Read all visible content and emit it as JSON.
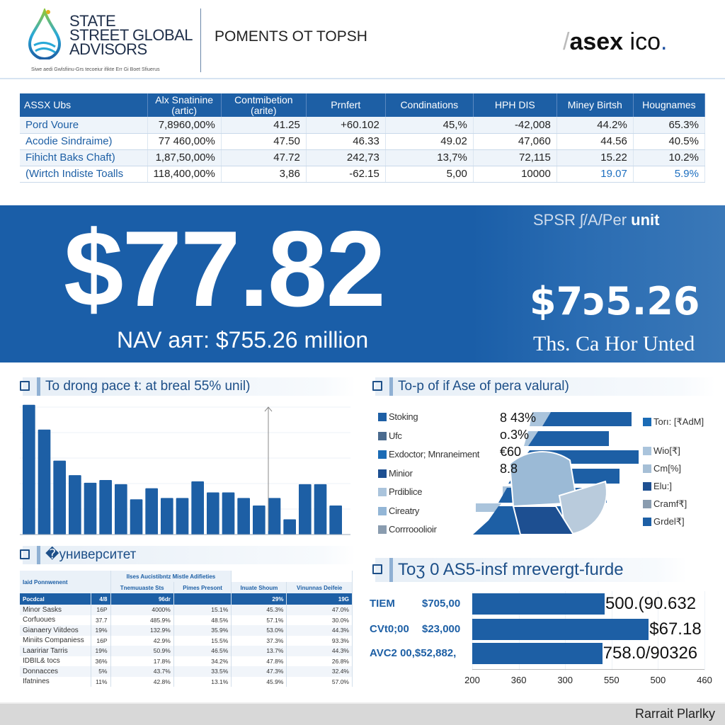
{
  "header": {
    "logo_lines": [
      "STATE",
      "STREET GLOBAL",
      "ADVISORS"
    ],
    "tagline": "Siwe aedi Gwlsfiinu-Grs tecoeiur ifikte Err Gi Boet Sfiuerus",
    "doc_title": "POMENTS OT TOPSH",
    "brand_bold": "asex",
    "brand_light": "ico",
    "brand_dot": "."
  },
  "top_table": {
    "columns": [
      "ASSX Ubs",
      "Alx Snatinine (artic)",
      "Contmibetion (arite)",
      "Prnfert",
      "Condinations",
      "HPH DIS",
      "Miney Birtsh",
      "Hougnames"
    ],
    "rows": [
      [
        "Pord Voure",
        "7,8960,00%",
        "41.25",
        "+60.102",
        "45,%",
        "-42,008",
        "44.2%",
        "65.3%"
      ],
      [
        "Acodie Sindraime)",
        "77 460,00%",
        "47.50",
        "46.33",
        "49.02",
        "47,060",
        "44.56",
        "40.5%"
      ],
      [
        "Fihicht Baks Chaft)",
        "1,87,50,00%",
        "47.72",
        "242,73",
        "13,7%",
        "72,115",
        "15.22",
        "10.2%"
      ],
      [
        "(Wirtch Indiste Toalls",
        "118,400,00%",
        "3,86",
        "-62.15",
        "5,00",
        "10000",
        "19.07",
        "5.9%"
      ]
    ]
  },
  "banner": {
    "price": "$77.82",
    "nav_text": "NAV aят: $755.26 million",
    "unit_label_light": "SPSR ʃ/A/Per ",
    "unit_label_bold": "unit",
    "unit_price": "$7ↄ5.26",
    "unit_sub": "Ths. Ca Hor Unted"
  },
  "section_left_top": {
    "title": "To drong pace ŧ: at breal 55% unil)"
  },
  "section_left_bottom": {
    "title": "�университет"
  },
  "section_right_top": {
    "title": "To-p of if Ase of pera valural)"
  },
  "section_right_bottom": {
    "title": "Toʒ 0 AS5-insf mrevergt-furde"
  },
  "small_table": {
    "corner": "Iaid Ponnwenent",
    "group_header": "Ilses Aucistibntz Mistle Adifieties",
    "sub_headers": [
      "Tnemuuaste Sts",
      "Pimes Presont",
      "Inuate Shoum",
      "Vinunnas Deifeie"
    ],
    "header_row": [
      "Pocdcal",
      "4/8",
      "96dr",
      "",
      "29%",
      "19G"
    ],
    "rows": [
      [
        "Minor Sasks",
        "16P",
        "4000%",
        "15.1%",
        "45.3%",
        "47.0%"
      ],
      [
        "Corfuoues",
        "37.7",
        "485.9%",
        "48.5%",
        "57.1%",
        "30.0%"
      ],
      [
        "Gianaery Viitdeos",
        "19%",
        "132.9%",
        "35.9%",
        "53.0%",
        "44.3%"
      ],
      [
        "Miniits Companiess",
        "16P",
        "42.9%",
        "15.5%",
        "37.3%",
        "93.3%"
      ],
      [
        "Laaririar Tarris",
        "19%",
        "50.9%",
        "46.5%",
        "13.7%",
        "44.3%"
      ],
      [
        "IDBIL& tocs",
        "36%",
        "17.8%",
        "34.2%",
        "47.8%",
        "26.8%"
      ],
      [
        "Donnacces",
        "5%",
        "43.7%",
        "33.5%",
        "47.3%",
        "32.4%"
      ],
      [
        "Ifatnines",
        "11%",
        "42.8%",
        "13.1%",
        "45.9%",
        "57.0%"
      ]
    ]
  },
  "right_top_chart": {
    "left_legend": [
      {
        "label": "Stoking",
        "color": "#1d5fa5"
      },
      {
        "label": "Ufc",
        "color": "#4a6a8e"
      },
      {
        "label": "Exdoctor; Mnraneiment",
        "color": "#1b6bb5"
      },
      {
        "label": "Minior",
        "color": "#1d4f91"
      },
      {
        "label": "Prdiblice",
        "color": "#aac4dc"
      },
      {
        "label": "Cireatry",
        "color": "#93b6d6"
      },
      {
        "label": "Corrrooolioir",
        "color": "#8a9caf"
      }
    ],
    "value_labels": [
      "8 43%",
      "o.3%",
      "€60",
      "8.8"
    ],
    "right_legend": [
      {
        "label": "Torı: [₹AdM]",
        "color": "#1b6bb5"
      },
      {
        "label": "Wio[₹]",
        "color": "#aac4dc"
      },
      {
        "label": "Cm[%]",
        "color": "#a6bfd6"
      },
      {
        "label": "Elu:]",
        "color": "#1d4f91"
      },
      {
        "label": "Cramf₹]",
        "color": "#8a9caf"
      },
      {
        "label": "Grdel₹]",
        "color": "#1d5fa5"
      }
    ]
  },
  "footer": {
    "text": "Rarrait Plarlky"
  },
  "chart_data": [
    {
      "type": "bar",
      "title": "To drong pace ŧ: at breal 55% unil)",
      "values": [
        188,
        152,
        107,
        86,
        75,
        79,
        73,
        51,
        67,
        53,
        53,
        77,
        61,
        61,
        53,
        42,
        53,
        22,
        73,
        73,
        42
      ],
      "ylim": [
        0,
        200
      ],
      "grid": true,
      "color": "#1d5fa5"
    },
    {
      "type": "bar",
      "orientation": "horizontal",
      "title": "Toʒ 0 AS5-insf mrevergt-furde",
      "categories": [
        {
          "name": "TIEM",
          "amount": "$705,00"
        },
        {
          "name": "CVt0;00",
          "amount": "$23,000"
        },
        {
          "name": "AVC2 00,$52,882,",
          "amount": ""
        }
      ],
      "value_labels": [
        "500.(90.632",
        "$67.18",
        "758.0/90326"
      ],
      "values_fraction_of_axis": [
        0.57,
        0.76,
        0.56
      ],
      "x_tick_labels": [
        "200",
        "360",
        "300",
        "550",
        "500",
        "460"
      ],
      "color": "#1d5fa5"
    }
  ]
}
